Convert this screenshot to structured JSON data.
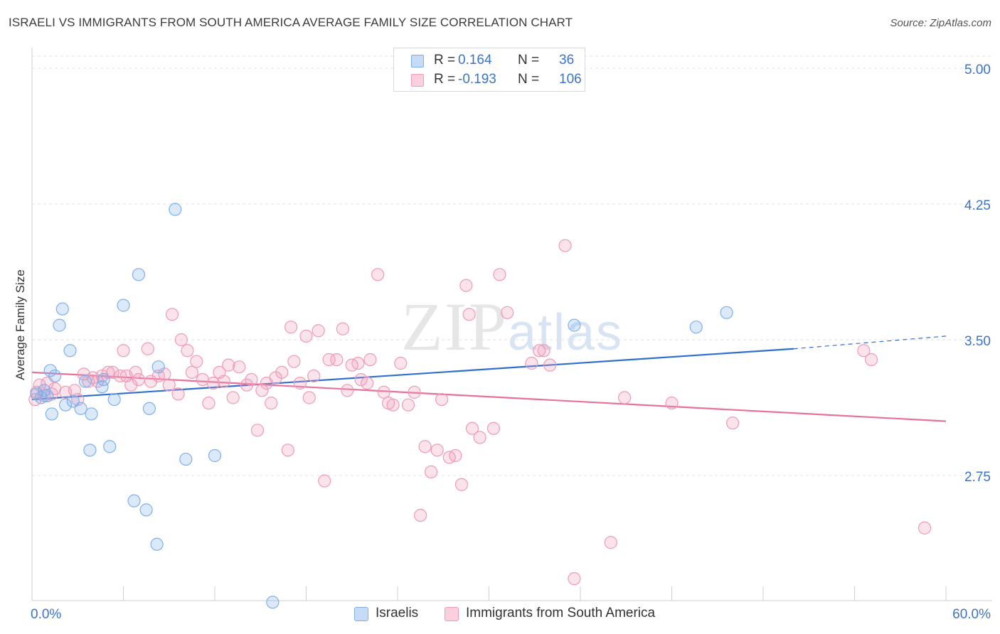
{
  "title": "ISRAELI VS IMMIGRANTS FROM SOUTH AMERICA AVERAGE FAMILY SIZE CORRELATION CHART",
  "source": "Source: ZipAtlas.com",
  "legend_top": [
    {
      "r_label": "R =",
      "r_value": "0.164",
      "n_label": "N =",
      "n_value": "36"
    },
    {
      "r_label": "R =",
      "r_value": "-0.193",
      "n_label": "N =",
      "n_value": "106"
    }
  ],
  "chart_data": {
    "type": "scatter",
    "ylabel": "Average Family Size",
    "xlim": [
      0,
      60
    ],
    "ylim": [
      2.05,
      5.1
    ],
    "x_tick_labels": [
      "0.0%",
      "60.0%"
    ],
    "y_ticks": [
      5.0,
      4.25,
      3.5,
      2.75
    ],
    "y_tick_labels": [
      "5.00",
      "4.25",
      "3.50",
      "2.75"
    ],
    "watermark": "ZIPatlas",
    "colors": {
      "israelis": "#7fb0ea",
      "immigrants": "#f09ab8",
      "israelis_line": "#2f6fd0",
      "immigrants_line": "#e8709c"
    },
    "series": [
      {
        "name": "Israelis",
        "trend": {
          "x0": 0,
          "y0": 3.17,
          "x1": 50,
          "y1": 3.45,
          "dash_to_x": 60,
          "dash_to_y": 3.52
        },
        "points": [
          [
            0.3,
            3.2
          ],
          [
            0.6,
            3.18
          ],
          [
            0.8,
            3.22
          ],
          [
            1.0,
            3.19
          ],
          [
            1.2,
            3.33
          ],
          [
            1.3,
            3.09
          ],
          [
            1.5,
            3.3
          ],
          [
            1.8,
            3.58
          ],
          [
            2.0,
            3.67
          ],
          [
            2.2,
            3.14
          ],
          [
            2.5,
            3.44
          ],
          [
            2.7,
            3.16
          ],
          [
            3.2,
            3.12
          ],
          [
            3.5,
            3.27
          ],
          [
            3.8,
            2.89
          ],
          [
            3.9,
            3.09
          ],
          [
            4.6,
            3.24
          ],
          [
            4.7,
            3.28
          ],
          [
            5.1,
            2.91
          ],
          [
            5.4,
            3.17
          ],
          [
            6.0,
            3.69
          ],
          [
            6.7,
            2.61
          ],
          [
            7.0,
            3.86
          ],
          [
            7.5,
            2.56
          ],
          [
            7.7,
            3.12
          ],
          [
            8.2,
            2.37
          ],
          [
            8.3,
            3.35
          ],
          [
            9.4,
            4.22
          ],
          [
            10.1,
            2.84
          ],
          [
            12.0,
            2.86
          ],
          [
            15.8,
            2.05
          ],
          [
            35.6,
            3.58
          ],
          [
            43.6,
            3.57
          ],
          [
            45.6,
            3.65
          ]
        ]
      },
      {
        "name": "Immigrants from South America",
        "trend": {
          "x0": 0,
          "y0": 3.32,
          "x1": 60,
          "y1": 3.05
        },
        "points": [
          [
            0.2,
            3.17
          ],
          [
            0.3,
            3.21
          ],
          [
            0.5,
            3.25
          ],
          [
            0.8,
            3.19
          ],
          [
            1.0,
            3.26
          ],
          [
            1.3,
            3.2
          ],
          [
            1.5,
            3.23
          ],
          [
            2.2,
            3.21
          ],
          [
            2.8,
            3.22
          ],
          [
            3.0,
            3.17
          ],
          [
            3.4,
            3.31
          ],
          [
            3.7,
            3.27
          ],
          [
            4.0,
            3.29
          ],
          [
            4.3,
            3.27
          ],
          [
            4.6,
            3.3
          ],
          [
            5.0,
            3.32
          ],
          [
            5.3,
            3.32
          ],
          [
            5.8,
            3.3
          ],
          [
            6.0,
            3.44
          ],
          [
            6.2,
            3.3
          ],
          [
            6.5,
            3.25
          ],
          [
            6.8,
            3.32
          ],
          [
            7.0,
            3.28
          ],
          [
            7.6,
            3.45
          ],
          [
            7.8,
            3.27
          ],
          [
            8.3,
            3.3
          ],
          [
            8.7,
            3.31
          ],
          [
            9.0,
            3.25
          ],
          [
            9.2,
            3.64
          ],
          [
            9.6,
            3.2
          ],
          [
            9.8,
            3.5
          ],
          [
            10.2,
            3.44
          ],
          [
            10.5,
            3.32
          ],
          [
            10.8,
            3.38
          ],
          [
            11.2,
            3.28
          ],
          [
            11.6,
            3.15
          ],
          [
            11.9,
            3.26
          ],
          [
            12.3,
            3.32
          ],
          [
            12.6,
            3.27
          ],
          [
            12.9,
            3.36
          ],
          [
            13.2,
            3.18
          ],
          [
            13.6,
            3.35
          ],
          [
            14.1,
            3.25
          ],
          [
            14.4,
            3.28
          ],
          [
            14.8,
            3.0
          ],
          [
            15.1,
            3.22
          ],
          [
            15.4,
            3.26
          ],
          [
            15.7,
            3.15
          ],
          [
            16.0,
            3.29
          ],
          [
            16.4,
            3.32
          ],
          [
            16.8,
            2.89
          ],
          [
            17.0,
            3.57
          ],
          [
            17.2,
            3.38
          ],
          [
            17.6,
            3.26
          ],
          [
            18.0,
            3.52
          ],
          [
            18.2,
            3.18
          ],
          [
            18.5,
            3.3
          ],
          [
            18.8,
            3.55
          ],
          [
            19.2,
            2.72
          ],
          [
            19.5,
            3.39
          ],
          [
            20.0,
            3.39
          ],
          [
            20.4,
            3.56
          ],
          [
            20.7,
            3.22
          ],
          [
            21.0,
            3.36
          ],
          [
            21.4,
            3.37
          ],
          [
            21.6,
            3.28
          ],
          [
            22.0,
            3.26
          ],
          [
            22.2,
            3.39
          ],
          [
            22.7,
            3.86
          ],
          [
            23.1,
            3.21
          ],
          [
            23.4,
            3.15
          ],
          [
            23.7,
            3.14
          ],
          [
            24.2,
            3.37
          ],
          [
            24.7,
            3.14
          ],
          [
            25.1,
            3.21
          ],
          [
            25.5,
            2.53
          ],
          [
            25.8,
            2.91
          ],
          [
            26.2,
            2.77
          ],
          [
            26.6,
            2.89
          ],
          [
            26.9,
            3.17
          ],
          [
            27.4,
            2.85
          ],
          [
            27.8,
            2.86
          ],
          [
            28.2,
            2.7
          ],
          [
            28.5,
            3.8
          ],
          [
            28.7,
            3.64
          ],
          [
            28.9,
            3.01
          ],
          [
            29.4,
            2.96
          ],
          [
            30.3,
            3.01
          ],
          [
            30.7,
            3.86
          ],
          [
            31.2,
            3.65
          ],
          [
            32.8,
            3.37
          ],
          [
            33.3,
            3.44
          ],
          [
            33.6,
            3.44
          ],
          [
            34.0,
            3.36
          ],
          [
            35.0,
            4.02
          ],
          [
            35.6,
            2.18
          ],
          [
            38.0,
            2.38
          ],
          [
            38.9,
            3.18
          ],
          [
            42.0,
            3.15
          ],
          [
            46.0,
            3.04
          ],
          [
            54.6,
            3.44
          ],
          [
            55.1,
            3.39
          ],
          [
            58.6,
            2.46
          ]
        ]
      }
    ]
  }
}
